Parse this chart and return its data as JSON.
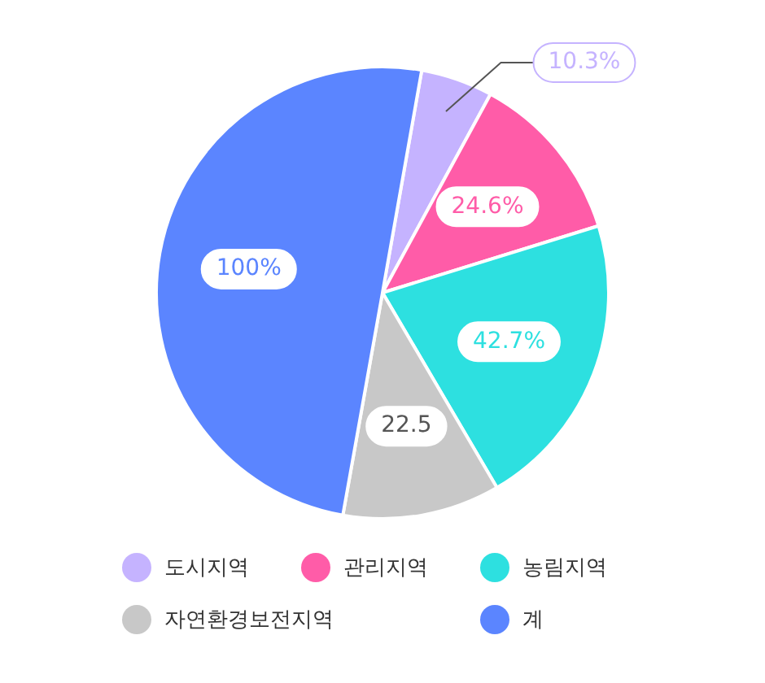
{
  "chart_data": {
    "type": "pie",
    "categories": [
      "도시지역",
      "관리지역",
      "농림지역",
      "자연환경보전지역",
      "계"
    ],
    "values": [
      10.3,
      24.6,
      42.7,
      22.5,
      100
    ],
    "colors": [
      "#c5b3ff",
      "#ff5ca8",
      "#2de0e0",
      "#c8c8c8",
      "#5b85ff"
    ],
    "value_labels": [
      "10.3%",
      "24.6%",
      "42.7%",
      "22.5",
      "100%"
    ],
    "legend": "bottom"
  }
}
